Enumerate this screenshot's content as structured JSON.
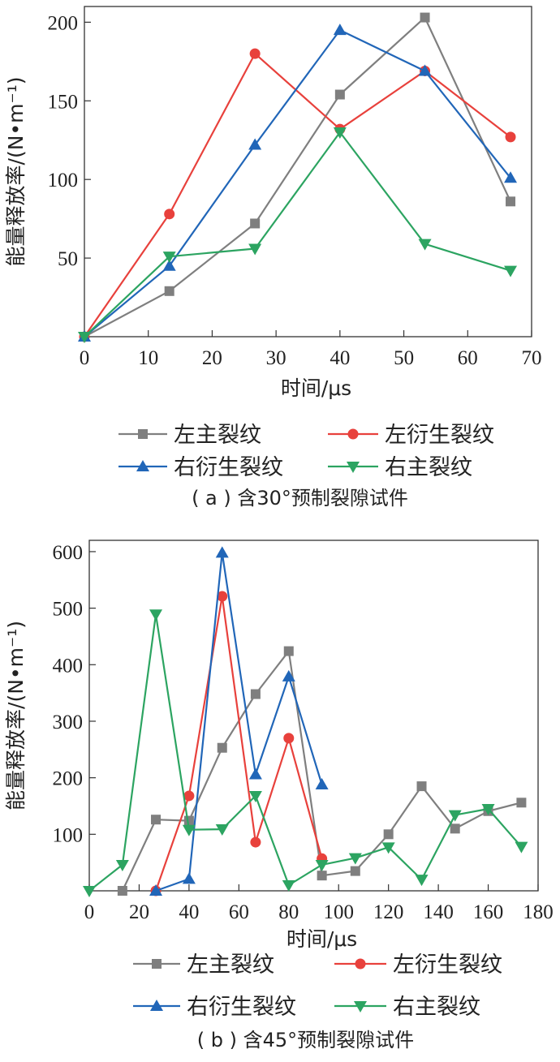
{
  "colors": {
    "left_main": "#7f7f7f",
    "left_derived": "#e8413c",
    "right_derived": "#2166b8",
    "right_main": "#2ca461"
  },
  "chart_data": [
    {
      "type": "line",
      "caption": "( a ) 含30°预制裂隙试件",
      "xlabel": "时间/μs",
      "ylabel": "能量释放率/(N•m⁻¹)",
      "xlim": [
        0,
        70
      ],
      "ylim": [
        0,
        210
      ],
      "xticks": [
        0,
        10,
        20,
        30,
        40,
        50,
        60,
        70
      ],
      "yticks": [
        50,
        100,
        150,
        200
      ],
      "grid": false,
      "legend_position": "below",
      "series": [
        {
          "name": "左主裂纹",
          "color": "#7f7f7f",
          "marker": "square",
          "x": [
            0,
            13.3,
            26.7,
            40,
            53.3,
            66.7
          ],
          "y": [
            0,
            29,
            72,
            154,
            203,
            86
          ]
        },
        {
          "name": "左衍生裂纹",
          "color": "#e8413c",
          "marker": "circle",
          "x": [
            0,
            13.3,
            26.7,
            40,
            53.3,
            66.7
          ],
          "y": [
            0,
            78,
            180,
            132,
            169,
            127
          ]
        },
        {
          "name": "右衍生裂纹",
          "color": "#2166b8",
          "marker": "triangle-up",
          "x": [
            0,
            13.3,
            26.7,
            40,
            53.3,
            66.7
          ],
          "y": [
            0,
            45,
            122,
            195,
            169,
            101
          ]
        },
        {
          "name": "右主裂纹",
          "color": "#2ca461",
          "marker": "triangle-down",
          "x": [
            0,
            13.3,
            26.7,
            40,
            53.3,
            66.7
          ],
          "y": [
            0,
            51,
            56,
            130,
            59,
            42
          ]
        }
      ]
    },
    {
      "type": "line",
      "caption": "( b ) 含45°预制裂隙试件",
      "xlabel": "时间/μs",
      "ylabel": "能量释放率/(N•m⁻¹)",
      "xlim": [
        0,
        180
      ],
      "ylim": [
        0,
        620
      ],
      "xticks": [
        0,
        20,
        40,
        60,
        80,
        100,
        120,
        140,
        160,
        180
      ],
      "yticks": [
        100,
        200,
        300,
        400,
        500,
        600
      ],
      "grid": false,
      "legend_position": "below",
      "series": [
        {
          "name": "左主裂纹",
          "color": "#7f7f7f",
          "marker": "square",
          "x": [
            13.3,
            26.7,
            40,
            53.3,
            66.7,
            80,
            93.3,
            106.7,
            120,
            133.3,
            146.7,
            160,
            173.3
          ],
          "y": [
            0,
            126,
            124,
            253,
            348,
            424,
            27,
            35,
            100,
            185,
            110,
            141,
            156
          ]
        },
        {
          "name": "左衍生裂纹",
          "color": "#e8413c",
          "marker": "circle",
          "x": [
            26.7,
            40,
            53.3,
            66.7,
            80,
            93.3
          ],
          "y": [
            0,
            168,
            521,
            86,
            270,
            57
          ]
        },
        {
          "name": "右衍生裂纹",
          "color": "#2166b8",
          "marker": "triangle-up",
          "x": [
            26.7,
            40,
            53.3,
            66.7,
            80,
            93.3
          ],
          "y": [
            0,
            21,
            598,
            206,
            379,
            188
          ]
        },
        {
          "name": "右主裂纹",
          "color": "#2ca461",
          "marker": "triangle-down",
          "x": [
            0,
            13.3,
            26.7,
            40,
            53.3,
            66.7,
            80,
            93.3,
            106.7,
            120,
            133.3,
            146.7,
            160,
            173.3
          ],
          "y": [
            0,
            46,
            489,
            108,
            109,
            168,
            10,
            46,
            58,
            77,
            20,
            134,
            145,
            78
          ]
        }
      ]
    }
  ]
}
